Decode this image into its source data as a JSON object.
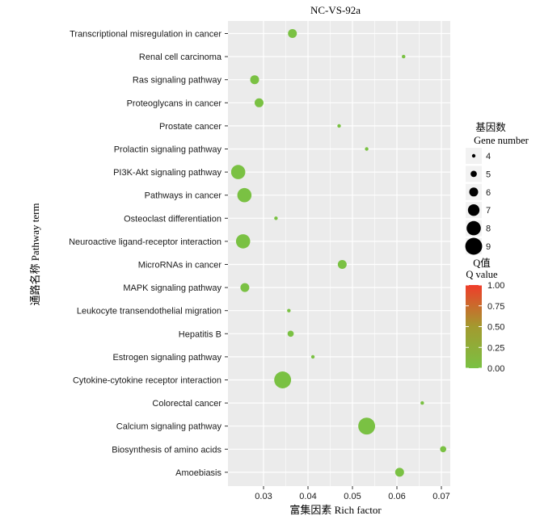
{
  "chart_data": {
    "type": "scatter",
    "title": "NC-VS-92a",
    "xlabel": "富集因素 Rich factor",
    "ylabel": "通路名称  Pathway term",
    "xlim": [
      0.022,
      0.072
    ],
    "xticks": [
      0.03,
      0.04,
      0.05,
      0.06,
      0.07
    ],
    "xtick_labels": [
      "0.03",
      "0.04",
      "0.05",
      "0.06",
      "0.07"
    ],
    "grid": true,
    "points": [
      {
        "term": "Transcriptional misregulation in cancer",
        "rich_factor": 0.0365,
        "gene_number": 6,
        "q_value": 0.05
      },
      {
        "term": "Renal cell carcinoma",
        "rich_factor": 0.0615,
        "gene_number": 4,
        "q_value": 0.05
      },
      {
        "term": "Ras signaling pathway",
        "rich_factor": 0.028,
        "gene_number": 6,
        "q_value": 0.05
      },
      {
        "term": "Proteoglycans in cancer",
        "rich_factor": 0.029,
        "gene_number": 6,
        "q_value": 0.05
      },
      {
        "term": "Prostate cancer",
        "rich_factor": 0.047,
        "gene_number": 4,
        "q_value": 0.05
      },
      {
        "term": "Prolactin signaling pathway",
        "rich_factor": 0.0532,
        "gene_number": 4,
        "q_value": 0.05
      },
      {
        "term": "PI3K-Akt signaling pathway",
        "rich_factor": 0.0243,
        "gene_number": 8,
        "q_value": 0.05
      },
      {
        "term": "Pathways in cancer",
        "rich_factor": 0.0257,
        "gene_number": 8,
        "q_value": 0.05
      },
      {
        "term": "Osteoclast differentiation",
        "rich_factor": 0.0328,
        "gene_number": 4,
        "q_value": 0.05
      },
      {
        "term": "Neuroactive ligand-receptor interaction",
        "rich_factor": 0.0254,
        "gene_number": 8,
        "q_value": 0.05
      },
      {
        "term": "MicroRNAs in cancer",
        "rich_factor": 0.0477,
        "gene_number": 6,
        "q_value": 0.05
      },
      {
        "term": "MAPK signaling pathway",
        "rich_factor": 0.0258,
        "gene_number": 6,
        "q_value": 0.05
      },
      {
        "term": "Leukocyte transendothelial migration",
        "rich_factor": 0.0357,
        "gene_number": 4,
        "q_value": 0.05
      },
      {
        "term": "Hepatitis B",
        "rich_factor": 0.0361,
        "gene_number": 5,
        "q_value": 0.05
      },
      {
        "term": "Estrogen signaling pathway",
        "rich_factor": 0.0411,
        "gene_number": 4,
        "q_value": 0.05
      },
      {
        "term": "Cytokine-cytokine receptor interaction",
        "rich_factor": 0.0343,
        "gene_number": 9,
        "q_value": 0.05
      },
      {
        "term": "Colorectal cancer",
        "rich_factor": 0.0657,
        "gene_number": 4,
        "q_value": 0.05
      },
      {
        "term": "Calcium signaling pathway",
        "rich_factor": 0.0532,
        "gene_number": 9,
        "q_value": 0.05
      },
      {
        "term": "Biosynthesis of amino acids",
        "rich_factor": 0.0704,
        "gene_number": 5,
        "q_value": 0.05
      },
      {
        "term": "Amoebiasis",
        "rich_factor": 0.0606,
        "gene_number": 6,
        "q_value": 0.05
      }
    ],
    "size_legend": {
      "title_zh": "基因数",
      "title_en": "Gene number",
      "values": [
        4,
        5,
        6,
        7,
        8,
        9
      ]
    },
    "color_legend": {
      "title_zh": "Q值",
      "title_en": "Q value",
      "ticks": [
        1.0,
        0.75,
        0.5,
        0.25,
        0.0
      ],
      "tick_labels": [
        "1.00",
        "0.75",
        "0.50",
        "0.25",
        "0.00"
      ],
      "low_color": "#7ac143",
      "mid_color": "#a39a2f",
      "high_color": "#f03c2a"
    },
    "colors": {
      "panel_bg": "#ebebeb",
      "grid": "#ffffff",
      "point": "#7ac143"
    }
  }
}
